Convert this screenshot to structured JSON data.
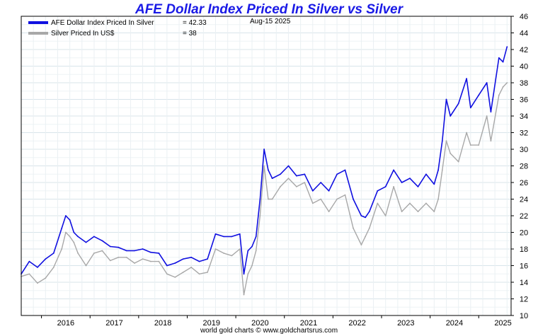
{
  "chart_data": {
    "type": "line",
    "title": "AFE Dollar Index Priced In Silver vs Silver",
    "date_label": "Aug-15  2025",
    "xlabel": "",
    "ylabel": "",
    "ylim": [
      10,
      46
    ],
    "y_ticks": [
      "10",
      "12",
      "14",
      "16",
      "18",
      "20",
      "22",
      "24",
      "26",
      "28",
      "30",
      "32",
      "34",
      "36",
      "38",
      "40",
      "42",
      "44",
      "46"
    ],
    "x_tick_labels": [
      "2016",
      "2017",
      "2018",
      "2019",
      "2020",
      "2021",
      "2022",
      "2023",
      "2024",
      "2025"
    ],
    "xlim": [
      "2015-08",
      "2025-09"
    ],
    "grid": true,
    "legend_position": "top-left",
    "series": [
      {
        "name": "AFE Dollar Index Priced In Silver",
        "last_value_label": "= 42.33",
        "color": "#1010e0",
        "x": [
          "2015-08",
          "2015-10",
          "2015-12",
          "2016-02",
          "2016-04",
          "2016-06",
          "2016-07",
          "2016-08",
          "2016-09",
          "2016-10",
          "2016-12",
          "2017-02",
          "2017-04",
          "2017-06",
          "2017-08",
          "2017-10",
          "2017-12",
          "2018-02",
          "2018-04",
          "2018-06",
          "2018-08",
          "2018-10",
          "2018-12",
          "2019-02",
          "2019-04",
          "2019-06",
          "2019-08",
          "2019-10",
          "2019-12",
          "2020-02",
          "2020-03",
          "2020-04",
          "2020-05",
          "2020-06",
          "2020-07",
          "2020-08",
          "2020-09",
          "2020-10",
          "2020-12",
          "2021-02",
          "2021-04",
          "2021-06",
          "2021-08",
          "2021-10",
          "2021-12",
          "2022-02",
          "2022-04",
          "2022-06",
          "2022-08",
          "2022-09",
          "2022-10",
          "2022-12",
          "2023-02",
          "2023-04",
          "2023-06",
          "2023-08",
          "2023-10",
          "2023-12",
          "2024-02",
          "2024-03",
          "2024-04",
          "2024-05",
          "2024-06",
          "2024-08",
          "2024-10",
          "2024-11",
          "2025-01",
          "2025-03",
          "2025-04",
          "2025-06",
          "2025-07",
          "2025-08"
        ],
        "values": [
          15.0,
          16.5,
          15.8,
          16.8,
          17.5,
          20.5,
          22.0,
          21.5,
          20.0,
          19.5,
          18.8,
          19.5,
          19.0,
          18.3,
          18.2,
          17.8,
          17.8,
          18.0,
          17.6,
          17.5,
          16.0,
          16.3,
          16.8,
          17.0,
          16.5,
          16.8,
          19.8,
          19.5,
          19.5,
          19.8,
          15.0,
          17.8,
          18.3,
          19.5,
          24.0,
          30.0,
          27.5,
          26.5,
          27.0,
          28.0,
          26.8,
          27.0,
          25.0,
          26.0,
          25.0,
          27.0,
          27.5,
          24.0,
          22.0,
          21.8,
          22.5,
          25.0,
          25.5,
          27.5,
          26.0,
          26.5,
          25.5,
          27.0,
          25.8,
          27.5,
          31.0,
          36.0,
          34.0,
          35.5,
          38.5,
          35.0,
          36.5,
          38.0,
          34.5,
          41.0,
          40.5,
          42.33
        ]
      },
      {
        "name": "Silver Priced In US$",
        "last_value_label": "= 38",
        "color": "#a8a8a8",
        "x": [
          "2015-08",
          "2015-10",
          "2015-12",
          "2016-02",
          "2016-04",
          "2016-06",
          "2016-07",
          "2016-08",
          "2016-09",
          "2016-10",
          "2016-12",
          "2017-02",
          "2017-04",
          "2017-06",
          "2017-08",
          "2017-10",
          "2017-12",
          "2018-02",
          "2018-04",
          "2018-06",
          "2018-08",
          "2018-10",
          "2018-12",
          "2019-02",
          "2019-04",
          "2019-06",
          "2019-08",
          "2019-10",
          "2019-12",
          "2020-02",
          "2020-03",
          "2020-04",
          "2020-05",
          "2020-06",
          "2020-07",
          "2020-08",
          "2020-09",
          "2020-10",
          "2020-12",
          "2021-02",
          "2021-04",
          "2021-06",
          "2021-08",
          "2021-10",
          "2021-12",
          "2022-02",
          "2022-04",
          "2022-06",
          "2022-08",
          "2022-09",
          "2022-10",
          "2022-12",
          "2023-02",
          "2023-04",
          "2023-06",
          "2023-08",
          "2023-10",
          "2023-12",
          "2024-02",
          "2024-03",
          "2024-04",
          "2024-05",
          "2024-06",
          "2024-08",
          "2024-10",
          "2024-11",
          "2025-01",
          "2025-03",
          "2025-04",
          "2025-06",
          "2025-07",
          "2025-08"
        ],
        "values": [
          14.7,
          15.0,
          13.9,
          14.5,
          15.8,
          18.0,
          20.0,
          19.5,
          18.8,
          17.5,
          16.0,
          17.5,
          17.8,
          16.6,
          17.0,
          17.0,
          16.3,
          16.8,
          16.5,
          16.5,
          15.0,
          14.6,
          15.2,
          15.8,
          15.0,
          15.2,
          18.0,
          17.5,
          17.2,
          18.0,
          12.5,
          15.0,
          16.0,
          17.8,
          22.0,
          28.0,
          24.0,
          24.0,
          25.5,
          26.5,
          25.5,
          26.0,
          23.5,
          24.0,
          22.5,
          24.0,
          24.5,
          20.5,
          18.5,
          19.5,
          20.5,
          23.5,
          22.0,
          25.5,
          22.5,
          23.5,
          22.5,
          23.5,
          22.5,
          24.0,
          27.5,
          31.0,
          29.5,
          28.5,
          32.0,
          30.5,
          30.5,
          34.0,
          31.0,
          36.5,
          37.5,
          38
        ]
      }
    ]
  },
  "footer": "world gold charts © www.goldchartsrus.com"
}
